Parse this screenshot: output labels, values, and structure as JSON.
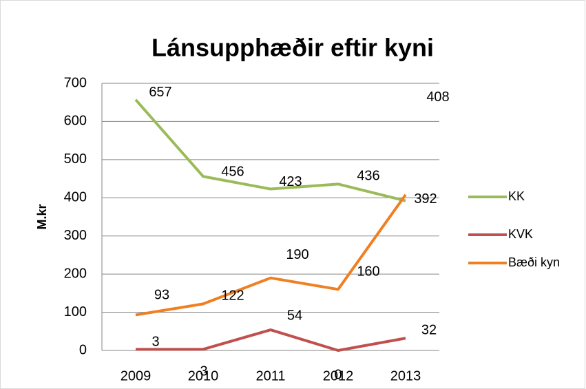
{
  "chart_data": {
    "type": "line",
    "title": "Lánsupphæðir eftir kyni",
    "y_label": "M.kr",
    "categories": [
      "2009",
      "2010",
      "2011",
      "2012",
      "2013"
    ],
    "series": [
      {
        "name": "KK",
        "color": "#9bbb59",
        "values": [
          657,
          456,
          423,
          436,
          392
        ]
      },
      {
        "name": "KVK",
        "color": "#c0504d",
        "values": [
          3,
          3,
          54,
          0,
          32
        ]
      },
      {
        "name": "Bæði kyn",
        "color": "#f07f22",
        "values": [
          93,
          122,
          190,
          160,
          408
        ]
      }
    ],
    "ylim": [
      0,
      700
    ],
    "yticks": [
      0,
      100,
      200,
      300,
      400,
      500,
      600,
      700
    ],
    "grid": true,
    "legend": "right"
  }
}
